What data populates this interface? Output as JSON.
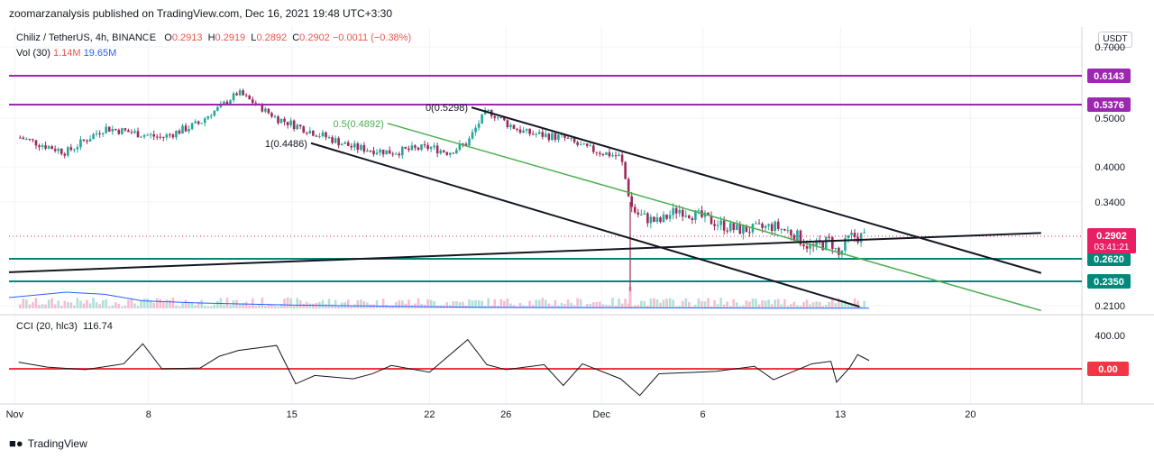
{
  "header": {
    "publisher": "zoomarzanalysis published on TradingView.com, Dec 16, 2021 19:48 UTC+3:30",
    "symbol": "Chiliz / TetherUS, 4h, BINANCE",
    "ohlc": {
      "o": "0.2913",
      "h": "0.2919",
      "l": "0.2892",
      "c": "0.2902",
      "chg": "−0.0011 (−0.38%)"
    },
    "vol_title": "Vol (30)",
    "vol_value": "1.14M",
    "vol_ma": "19.65M",
    "currency": "USDT"
  },
  "cci": {
    "title": "CCI (20, hlc3)",
    "value": "116.74"
  },
  "footer": {
    "brand": "TradingView",
    "brand_icon": "tradingview-logo-icon"
  },
  "colors": {
    "up": "#26a69a",
    "down": "#9c2a5a",
    "resistance": "#9c27b0",
    "support": "#00897b",
    "mid_channel": "#4caf50",
    "cci_zero": "#f23645",
    "price_label": "#e91e63"
  },
  "chart_data": {
    "type": "candlestick",
    "symbol": "CHZUSDT",
    "timeframe": "4h",
    "y_axis": {
      "ticks": [
        0.7,
        0.5,
        0.4,
        0.34,
        0.21
      ],
      "tick_labels": [
        "0.7000",
        "0.5000",
        "0.4000",
        "0.3400",
        "0.2100"
      ]
    },
    "x_axis": {
      "ticks": [
        "Nov",
        "8",
        "15",
        "22",
        "26",
        "Dec",
        "6",
        "13",
        "20"
      ]
    },
    "price_path": [
      [
        0.58,
        0.46
      ],
      [
        3,
        0.43
      ],
      [
        5,
        0.48
      ],
      [
        8,
        0.46
      ],
      [
        10,
        0.49
      ],
      [
        12,
        0.57
      ],
      [
        14,
        0.5
      ],
      [
        16,
        0.47
      ],
      [
        18,
        0.44
      ],
      [
        20,
        0.43
      ],
      [
        22,
        0.44
      ],
      [
        23,
        0.43
      ],
      [
        24,
        0.45
      ],
      [
        25,
        0.52
      ],
      [
        26,
        0.49
      ],
      [
        27,
        0.47
      ],
      [
        28,
        0.465
      ],
      [
        29,
        0.46
      ],
      [
        30,
        0.44
      ],
      [
        31,
        0.43
      ],
      [
        32,
        0.42
      ],
      [
        32.3,
        0.37
      ],
      [
        32.6,
        0.33
      ],
      [
        33,
        0.32
      ],
      [
        34,
        0.31
      ],
      [
        35,
        0.33
      ],
      [
        36,
        0.32
      ],
      [
        37,
        0.31
      ],
      [
        38,
        0.3
      ],
      [
        39,
        0.3
      ],
      [
        40,
        0.305
      ],
      [
        41,
        0.295
      ],
      [
        42,
        0.275
      ],
      [
        43,
        0.285
      ],
      [
        43.4,
        0.265
      ],
      [
        44,
        0.29
      ],
      [
        44.8,
        0.2902
      ]
    ],
    "horizontal_levels": [
      {
        "price": 0.6143,
        "label": "0.6143",
        "kind": "resistance"
      },
      {
        "price": 0.5376,
        "label": "0.5376",
        "kind": "resistance"
      },
      {
        "price": 0.262,
        "label": "0.2620",
        "kind": "support"
      },
      {
        "price": 0.235,
        "label": "0.2350",
        "kind": "support"
      }
    ],
    "last_price": {
      "value": "0.2902",
      "countdown": "03:41:21"
    },
    "trendlines": [
      {
        "kind": "channel-top",
        "from": [
          24.2,
          0.5298
        ],
        "to": [
          54,
          0.245
        ]
      },
      {
        "kind": "channel-mid",
        "from": [
          19.8,
          0.4892
        ],
        "to": [
          54,
          0.205
        ]
      },
      {
        "kind": "channel-bottom",
        "from": [
          15.8,
          0.4486
        ],
        "to": [
          44.5,
          0.209
        ]
      },
      {
        "kind": "rising-support",
        "from": [
          0,
          0.246
        ],
        "to": [
          54,
          0.295
        ]
      }
    ],
    "fib_labels": [
      {
        "text": "0(0.5298)",
        "x": 24.2,
        "price": 0.5298
      },
      {
        "text": "0.5(0.4892)",
        "x": 19.8,
        "price": 0.4892
      },
      {
        "text": "1(0.4486)",
        "x": 15.8,
        "price": 0.4486
      }
    ],
    "cci": {
      "ticks": [
        400,
        0
      ],
      "tick_labels": [
        "400.00",
        "0.00"
      ],
      "path": [
        [
          0.5,
          80
        ],
        [
          2,
          20
        ],
        [
          4,
          -10
        ],
        [
          6,
          60
        ],
        [
          7,
          300
        ],
        [
          8,
          0
        ],
        [
          10,
          10
        ],
        [
          11,
          150
        ],
        [
          12,
          220
        ],
        [
          14,
          280
        ],
        [
          15,
          -180
        ],
        [
          16,
          -80
        ],
        [
          18,
          -120
        ],
        [
          19,
          -60
        ],
        [
          20,
          40
        ],
        [
          22,
          -40
        ],
        [
          24,
          350
        ],
        [
          25,
          50
        ],
        [
          26,
          -10
        ],
        [
          28,
          50
        ],
        [
          29,
          -200
        ],
        [
          30,
          60
        ],
        [
          32,
          -120
        ],
        [
          33,
          -320
        ],
        [
          34,
          -60
        ],
        [
          36,
          -40
        ],
        [
          37,
          -30
        ],
        [
          39,
          30
        ],
        [
          40,
          -130
        ],
        [
          42,
          60
        ],
        [
          43,
          90
        ],
        [
          43.3,
          -160
        ],
        [
          44,
          20
        ],
        [
          44.4,
          170
        ],
        [
          45,
          100
        ]
      ]
    },
    "volume_ma": [
      [
        0,
        2.0
      ],
      [
        3,
        3.0
      ],
      [
        5,
        2.6
      ],
      [
        7,
        1.4
      ],
      [
        10,
        1.0
      ],
      [
        15,
        0.6
      ],
      [
        20,
        0.4
      ],
      [
        25,
        0.2
      ],
      [
        30,
        0.15
      ],
      [
        35,
        0.1
      ],
      [
        40,
        0.05
      ],
      [
        45,
        0.05
      ]
    ]
  }
}
